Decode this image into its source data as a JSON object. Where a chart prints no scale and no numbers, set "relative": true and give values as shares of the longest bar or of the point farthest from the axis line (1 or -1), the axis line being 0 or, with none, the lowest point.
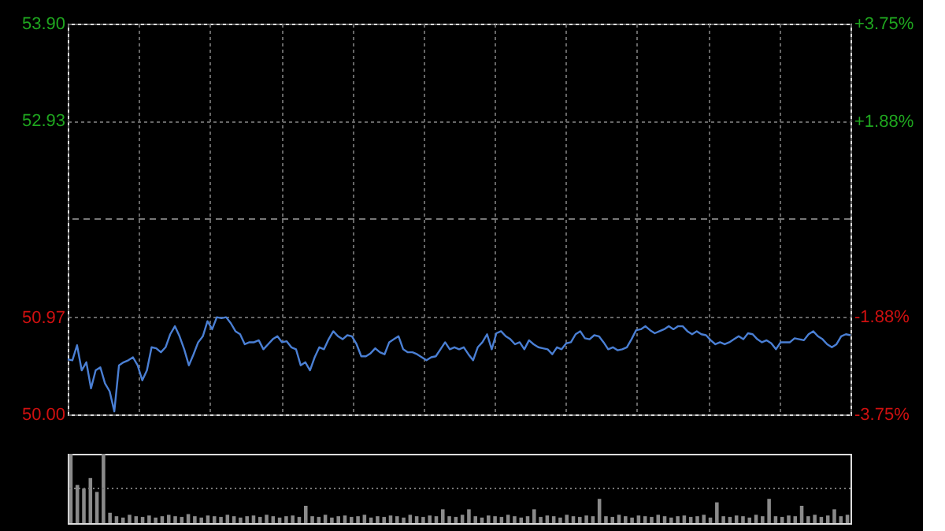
{
  "chart_data": [
    {
      "type": "line",
      "categories": [
        null,
        null,
        null,
        null,
        null,
        null,
        null,
        null,
        null,
        null,
        null,
        null,
        null,
        null,
        null,
        null,
        null,
        null,
        null,
        null,
        null,
        null,
        null,
        null,
        null,
        null,
        null,
        null,
        null,
        null,
        null,
        null,
        null,
        null,
        null,
        null,
        null,
        null,
        null,
        null,
        null,
        null,
        null,
        null,
        null,
        null,
        null,
        null,
        null,
        null,
        null,
        null,
        null,
        null,
        null,
        null,
        null,
        null,
        null,
        null,
        null,
        null,
        null,
        null,
        null,
        null,
        null,
        null,
        null,
        null,
        null,
        null,
        null,
        null,
        null,
        null,
        null,
        null,
        null,
        null,
        null,
        null,
        null,
        null,
        null,
        null,
        null,
        null,
        null,
        null,
        null,
        null,
        null,
        null,
        null,
        null,
        null,
        null,
        null,
        null,
        null,
        null,
        null,
        null,
        null,
        null,
        null,
        null,
        null,
        null,
        null,
        null,
        null,
        null,
        null,
        null,
        null,
        null,
        null,
        null,
        null,
        null,
        null,
        null,
        null,
        null,
        null,
        null,
        null,
        null,
        null,
        null,
        null,
        null,
        null,
        null,
        null,
        null,
        null,
        null,
        null,
        null,
        null,
        null,
        null,
        null,
        null,
        null,
        null,
        null,
        null,
        null,
        null,
        null,
        null,
        null,
        null,
        null,
        null,
        null,
        null,
        null,
        null,
        null,
        null,
        null,
        null,
        null,
        null
      ],
      "series": [
        {
          "color": "#4a7fd4",
          "values": [
            50.55,
            50.54,
            50.69,
            50.44,
            50.52,
            50.26,
            50.44,
            50.47,
            50.31,
            50.23,
            50.03,
            50.49,
            50.52,
            50.54,
            50.57,
            50.49,
            50.34,
            50.44,
            50.67,
            50.66,
            50.62,
            50.67,
            50.8,
            50.88,
            50.78,
            50.65,
            50.49,
            50.6,
            50.72,
            50.78,
            50.93,
            50.85,
            50.97,
            50.96,
            50.97,
            50.91,
            50.83,
            50.8,
            50.7,
            50.72,
            50.72,
            50.74,
            50.65,
            50.7,
            50.75,
            50.78,
            50.72,
            50.73,
            50.67,
            50.65,
            50.49,
            50.52,
            50.44,
            50.57,
            50.67,
            50.65,
            50.75,
            50.83,
            50.78,
            50.75,
            50.79,
            50.78,
            50.7,
            50.58,
            50.58,
            50.61,
            50.66,
            50.62,
            50.6,
            50.72,
            50.75,
            50.78,
            50.65,
            50.62,
            50.62,
            50.6,
            50.57,
            50.54,
            50.57,
            50.58,
            50.65,
            50.72,
            50.65,
            50.67,
            50.65,
            50.67,
            50.6,
            50.54,
            50.67,
            50.72,
            50.8,
            50.65,
            50.81,
            50.83,
            50.78,
            50.75,
            50.7,
            50.72,
            50.65,
            50.74,
            50.7,
            50.67,
            50.66,
            50.65,
            50.6,
            50.67,
            50.65,
            50.71,
            50.72,
            50.8,
            50.83,
            50.76,
            50.75,
            50.79,
            50.78,
            50.72,
            50.65,
            50.67,
            50.64,
            50.65,
            50.67,
            50.75,
            50.84,
            50.85,
            50.88,
            50.84,
            50.81,
            50.83,
            50.85,
            50.88,
            50.85,
            50.88,
            50.88,
            50.83,
            50.8,
            50.83,
            50.8,
            50.79,
            50.74,
            50.7,
            50.72,
            50.7,
            50.72,
            50.75,
            50.78,
            50.75,
            50.81,
            50.8,
            50.75,
            50.72,
            50.74,
            50.71,
            50.65,
            50.72,
            50.72,
            50.72,
            50.76,
            50.75,
            50.74,
            50.8,
            50.83,
            50.78,
            50.75,
            50.7,
            50.67,
            50.7,
            50.78,
            50.8,
            50.79
          ]
        }
      ],
      "ylim": [
        50.0,
        53.9
      ],
      "yticks": [
        {
          "value": 50.0,
          "label": "50.00"
        },
        {
          "value": 50.97,
          "label": "50.97"
        },
        {
          "value": 52.93,
          "label": "52.93"
        },
        {
          "value": 53.9,
          "label": "53.90"
        }
      ],
      "y2lim": [
        -3.75,
        3.75
      ],
      "y2ticks": [
        {
          "value": -3.75,
          "label": "-3.75%"
        },
        {
          "value": -1.88,
          "label": "-1.88%"
        },
        {
          "value": 1.88,
          "label": "+1.88%"
        },
        {
          "value": 3.75,
          "label": "+3.75%"
        }
      ],
      "ref_lines": [
        {
          "axis": "y",
          "value": 51.95,
          "label": null,
          "line_style": "dashed"
        }
      ],
      "grid": true,
      "legend": false,
      "tick_labels": "y",
      "line_style": "solid",
      "marker": "none"
    },
    {
      "type": "bar",
      "relative": true,
      "legend": false,
      "tick_labels": false,
      "ref_lines": [
        {
          "axis": "y",
          "value": 0.5,
          "label": null,
          "line_style": "dotted"
        }
      ],
      "series": [
        {
          "color": "#8a8a8a",
          "values": [
            1.0,
            0.55,
            0.5,
            0.65,
            0.45,
            1.0,
            0.15,
            0.1,
            0.08,
            0.12,
            0.1,
            0.09,
            0.11,
            0.08,
            0.1,
            0.12,
            0.1,
            0.09,
            0.13,
            0.1,
            0.08,
            0.11,
            0.1,
            0.09,
            0.12,
            0.1,
            0.08,
            0.1,
            0.11,
            0.09,
            0.12,
            0.1,
            0.08,
            0.1,
            0.11,
            0.09,
            0.25,
            0.1,
            0.09,
            0.12,
            0.08,
            0.1,
            0.11,
            0.09,
            0.1,
            0.12,
            0.08,
            0.1,
            0.09,
            0.11,
            0.1,
            0.08,
            0.12,
            0.1,
            0.09,
            0.11,
            0.1,
            0.2,
            0.1,
            0.09,
            0.12,
            0.2,
            0.1,
            0.08,
            0.11,
            0.1,
            0.09,
            0.12,
            0.1,
            0.08,
            0.1,
            0.2,
            0.09,
            0.11,
            0.1,
            0.08,
            0.12,
            0.1,
            0.09,
            0.11,
            0.1,
            0.35,
            0.1,
            0.09,
            0.12,
            0.1,
            0.08,
            0.11,
            0.1,
            0.09,
            0.12,
            0.1,
            0.08,
            0.1,
            0.11,
            0.09,
            0.1,
            0.12,
            0.08,
            0.3,
            0.1,
            0.09,
            0.11,
            0.1,
            0.08,
            0.12,
            0.1,
            0.35,
            0.1,
            0.09,
            0.11,
            0.1,
            0.25,
            0.1,
            0.12,
            0.09,
            0.11,
            0.2,
            0.1,
            0.12
          ]
        }
      ],
      "categories": [
        null,
        null,
        null,
        null,
        null,
        null,
        null,
        null,
        null,
        null,
        null,
        null,
        null,
        null,
        null,
        null,
        null,
        null,
        null,
        null,
        null,
        null,
        null,
        null,
        null,
        null,
        null,
        null,
        null,
        null,
        null,
        null,
        null,
        null,
        null,
        null,
        null,
        null,
        null,
        null,
        null,
        null,
        null,
        null,
        null,
        null,
        null,
        null,
        null,
        null,
        null,
        null,
        null,
        null,
        null,
        null,
        null,
        null,
        null,
        null,
        null,
        null,
        null,
        null,
        null,
        null,
        null,
        null,
        null,
        null,
        null,
        null,
        null,
        null,
        null,
        null,
        null,
        null,
        null,
        null,
        null,
        null,
        null,
        null,
        null,
        null,
        null,
        null,
        null,
        null,
        null,
        null,
        null,
        null,
        null,
        null,
        null,
        null,
        null,
        null,
        null,
        null,
        null,
        null,
        null,
        null,
        null,
        null,
        null,
        null,
        null,
        null,
        null,
        null,
        null,
        null,
        null,
        null,
        null,
        null
      ]
    }
  ]
}
